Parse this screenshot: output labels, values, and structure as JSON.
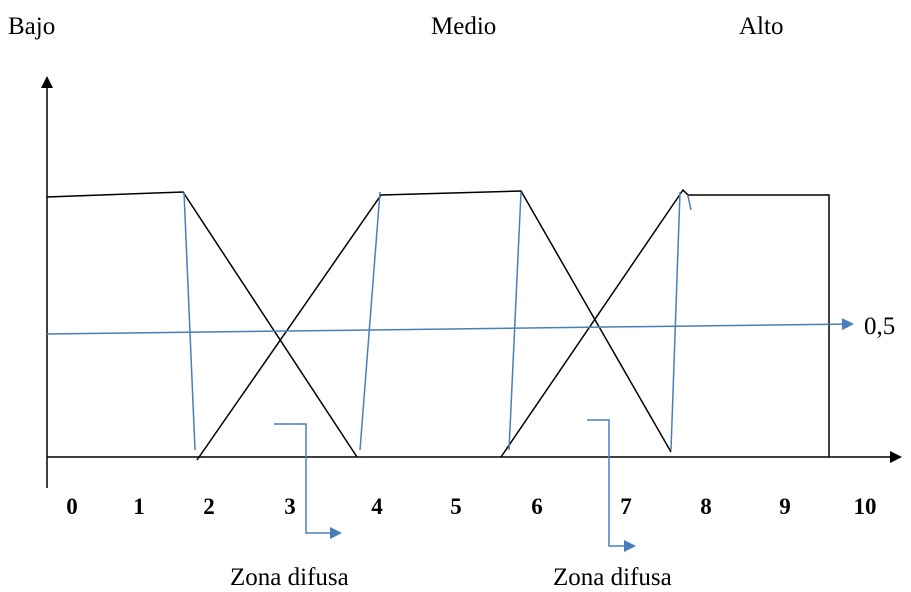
{
  "sets": [
    {
      "name": "Bajo"
    },
    {
      "name": "Medio"
    },
    {
      "name": "Alto"
    }
  ],
  "x_ticks": [
    "0",
    "1",
    "2",
    "3",
    "4",
    "5",
    "6",
    "7",
    "8",
    "9",
    "10"
  ],
  "half_label": "0,5",
  "zones": [
    {
      "label": "Zona difusa"
    },
    {
      "label": "Zona difusa"
    }
  ],
  "colors": {
    "axis": "#000000",
    "membership": "#000000",
    "annotation": "#4a7ebb"
  }
}
